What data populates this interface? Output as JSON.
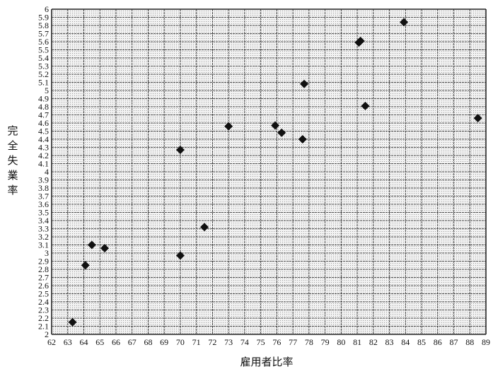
{
  "chart_data": {
    "type": "scatter",
    "title": "",
    "xlabel": "雇用者比率",
    "ylabel": "完全失業率",
    "xlim": [
      62,
      89
    ],
    "ylim": [
      2,
      6
    ],
    "x_step": 1,
    "y_step": 0.1,
    "grid": true,
    "legend": "none",
    "marker": "diamond",
    "colors": {
      "marker": "#111111",
      "plot_bg": "#e9e9e9",
      "grid": "#222222"
    },
    "series": [
      {
        "points": [
          [
            63.3,
            2.15
          ],
          [
            64.1,
            2.85
          ],
          [
            64.5,
            3.1
          ],
          [
            65.3,
            3.06
          ],
          [
            70.0,
            2.97
          ],
          [
            70.0,
            4.27
          ],
          [
            71.5,
            3.32
          ],
          [
            73.0,
            4.56
          ],
          [
            75.9,
            4.57
          ],
          [
            76.3,
            4.48
          ],
          [
            77.6,
            4.4
          ],
          [
            77.7,
            5.08
          ],
          [
            81.1,
            5.59
          ],
          [
            81.2,
            5.61
          ],
          [
            81.5,
            4.81
          ],
          [
            83.9,
            5.84
          ],
          [
            88.5,
            4.66
          ]
        ]
      }
    ]
  }
}
